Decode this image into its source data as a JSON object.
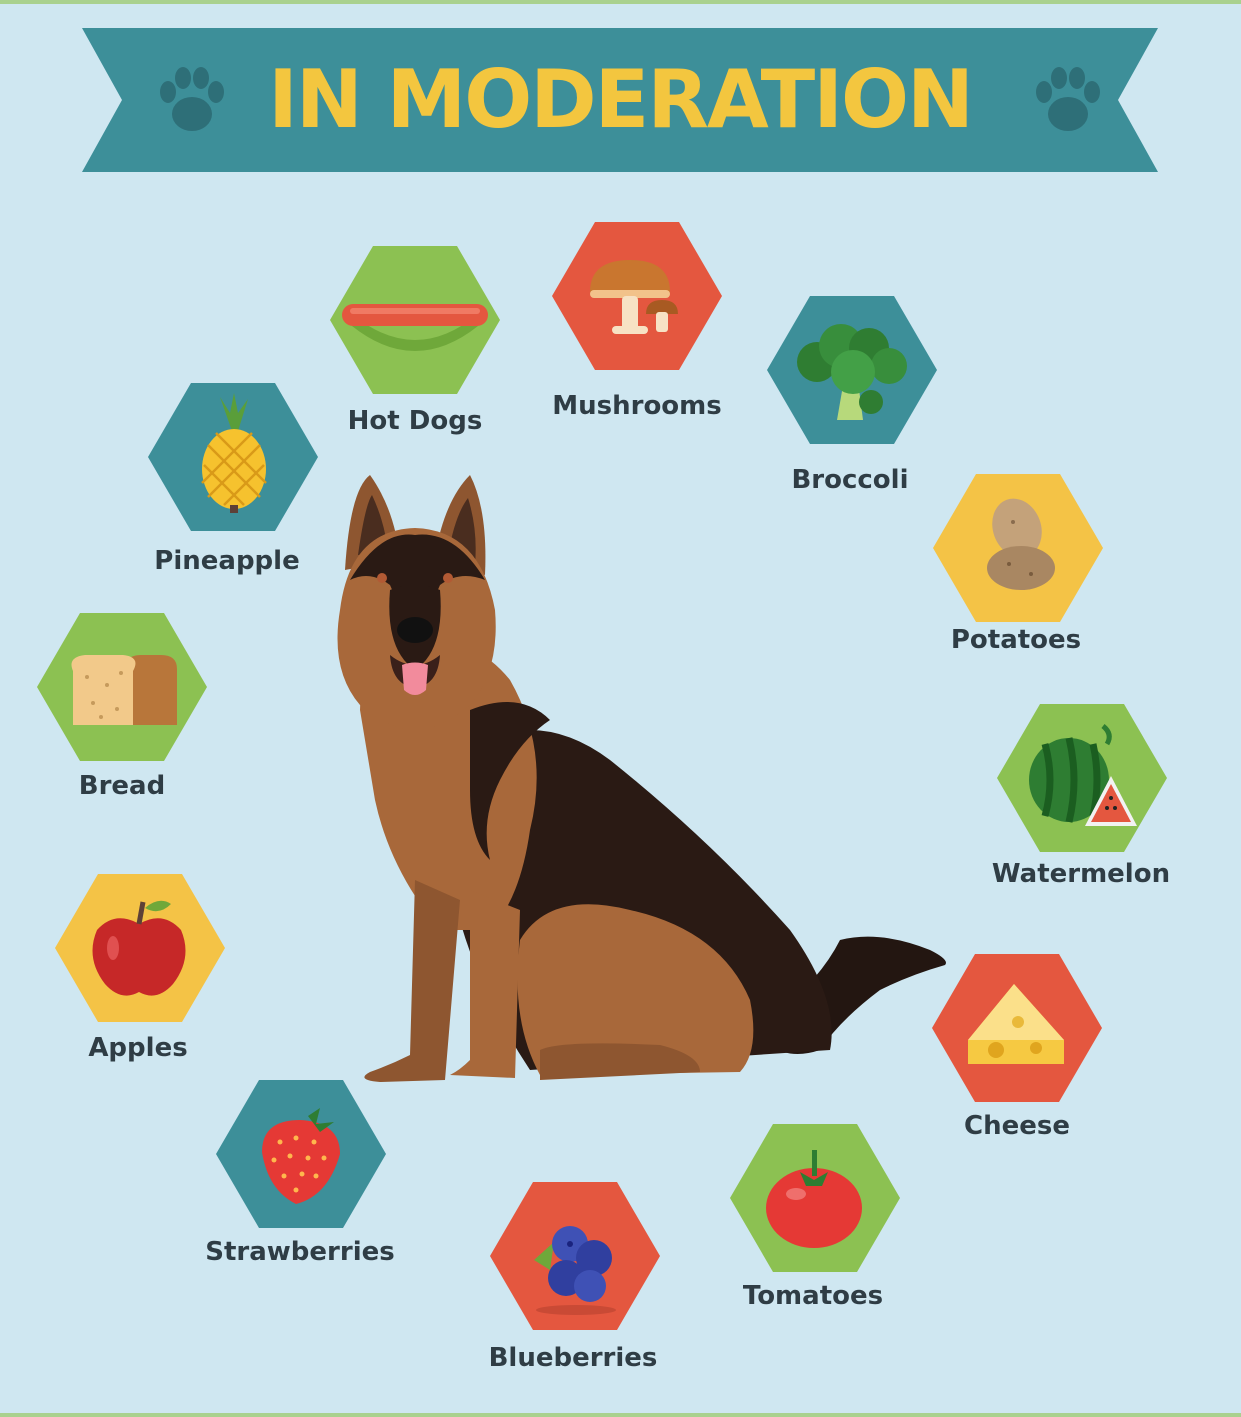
{
  "banner": {
    "title": "IN MODERATION",
    "icon_left": "paw-print-icon",
    "icon_right": "paw-print-icon"
  },
  "colors": {
    "background": "#cfe7f1",
    "banner": "#3d8f99",
    "banner_dark": "#2e6f78",
    "title_yellow": "#f3c63f",
    "hex_green": "#8cc152",
    "hex_red": "#e4573f",
    "hex_teal": "#3d8f99",
    "hex_yellow": "#f4c346",
    "label_text": "#2f3d45"
  },
  "foods": [
    {
      "label": "Hot Dogs",
      "icon": "hot-dog-icon",
      "hex_color": "green"
    },
    {
      "label": "Mushrooms",
      "icon": "mushroom-icon",
      "hex_color": "red"
    },
    {
      "label": "Broccoli",
      "icon": "broccoli-icon",
      "hex_color": "teal"
    },
    {
      "label": "Potatoes",
      "icon": "potato-icon",
      "hex_color": "yellow"
    },
    {
      "label": "Watermelon",
      "icon": "watermelon-icon",
      "hex_color": "green"
    },
    {
      "label": "Cheese",
      "icon": "cheese-icon",
      "hex_color": "red"
    },
    {
      "label": "Tomatoes",
      "icon": "tomato-icon",
      "hex_color": "green"
    },
    {
      "label": "Blueberries",
      "icon": "blueberry-icon",
      "hex_color": "red"
    },
    {
      "label": "Strawberries",
      "icon": "strawberry-icon",
      "hex_color": "teal"
    },
    {
      "label": "Apples",
      "icon": "apple-icon",
      "hex_color": "yellow"
    },
    {
      "label": "Bread",
      "icon": "bread-icon",
      "hex_color": "green"
    },
    {
      "label": "Pineapple",
      "icon": "pineapple-icon",
      "hex_color": "teal"
    }
  ],
  "center_illustration": "german-shepherd-dog-illustration"
}
